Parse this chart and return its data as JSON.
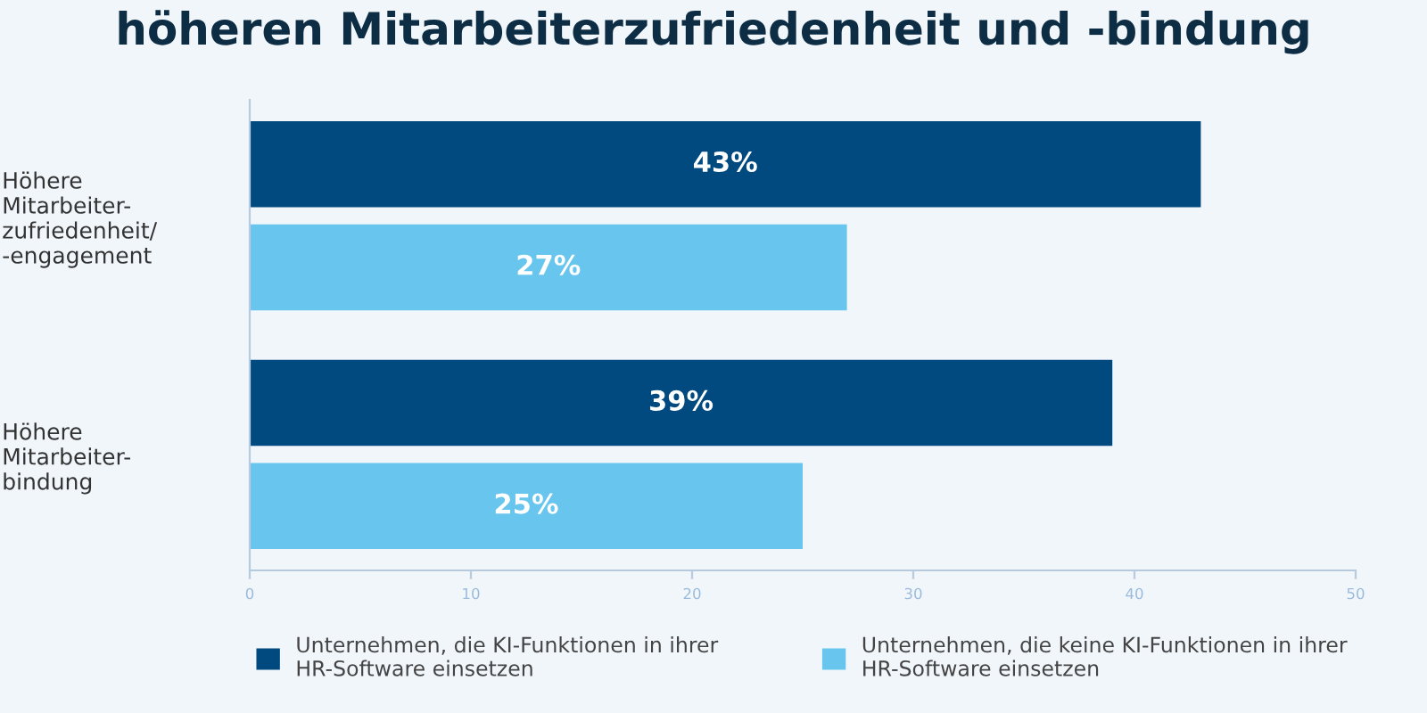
{
  "chart_data": {
    "type": "bar",
    "orientation": "horizontal",
    "title": "höheren Mitarbeiterzufriedenheit und -bindung",
    "categories": [
      "Höhere\nMitarbeiter-\nzufriedenheit/\n-engagement",
      "Höhere\nMitarbeiter-\nbindung"
    ],
    "series": [
      {
        "name": "Unternehmen, die KI-Funktionen in ihrer\nHR-Software einsetzen",
        "color": "#004a80",
        "values": [
          43,
          39
        ],
        "value_labels": [
          "43%",
          "39%"
        ]
      },
      {
        "name": "Unternehmen, die keine KI-Funktionen in ihrer\nHR-Software einsetzen",
        "color": "#68c5ee",
        "values": [
          27,
          25
        ],
        "value_labels": [
          "27%",
          "25%"
        ]
      }
    ],
    "xlim": [
      0,
      50
    ],
    "xticks": [
      0,
      10,
      20,
      30,
      40,
      50
    ],
    "grid": false,
    "legend": "bottom"
  }
}
